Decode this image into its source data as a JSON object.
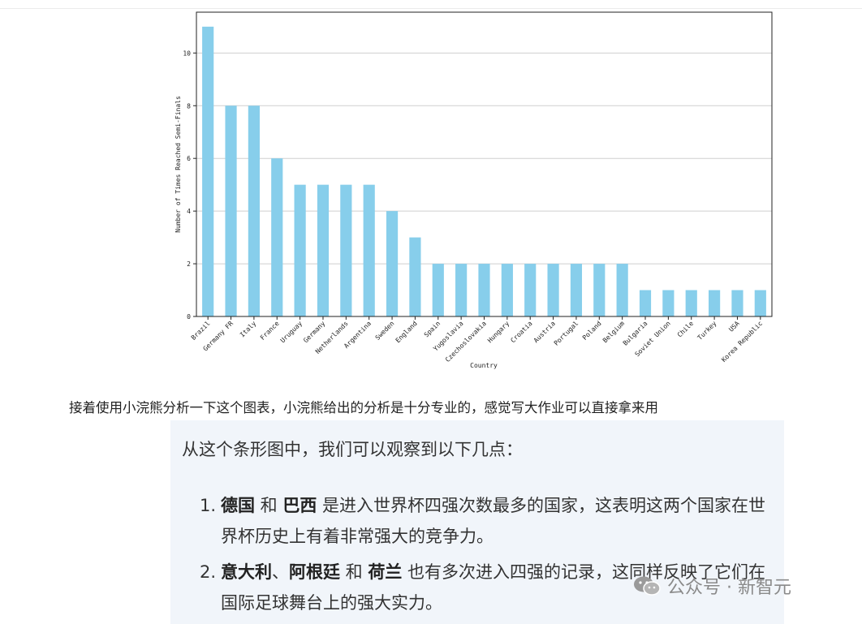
{
  "chart_data": {
    "type": "bar",
    "categories": [
      "Brazil",
      "Germany FR",
      "Italy",
      "France",
      "Uruguay",
      "Germany",
      "Netherlands",
      "Argentina",
      "Sweden",
      "England",
      "Spain",
      "Yugoslavia",
      "Czechoslovakia",
      "Hungary",
      "Croatia",
      "Austria",
      "Portugal",
      "Poland",
      "Belgium",
      "Bulgaria",
      "Soviet Union",
      "Chile",
      "Turkey",
      "USA",
      "Korea Republic"
    ],
    "values": [
      11,
      8,
      8,
      6,
      5,
      5,
      5,
      5,
      4,
      3,
      2,
      2,
      2,
      2,
      2,
      2,
      2,
      2,
      2,
      1,
      1,
      1,
      1,
      1,
      1
    ],
    "xlabel": "Country",
    "ylabel": "Number of Times Reached Semi-Finals",
    "ylim": [
      0,
      11.55
    ],
    "yticks": [
      0,
      2,
      4,
      6,
      8,
      10
    ],
    "grid": "horizontal",
    "bar_color": "#87ceeb"
  },
  "article": {
    "intro": "接着使用小浣熊分析一下这个图表，小浣熊给出的分析是十分专业的，感觉写大作业可以直接拿来用",
    "lead": "从这个条形图中，我们可以观察到以下几点：",
    "items": [
      {
        "num": "1.",
        "b1": "德国",
        "s1": " 和 ",
        "b2": "巴西",
        "s2": "",
        "b3": "",
        "rest": " 是进入世界杯四强次数最多的国家，这表明这两个国家在世界杯历史上有着非常强大的竞争力。"
      },
      {
        "num": "2.",
        "b1": "意大利",
        "s1": "、",
        "b2": "阿根廷",
        "s2": " 和 ",
        "b3": "荷兰",
        "rest": " 也有多次进入四强的记录，这同样反映了它们在国际足球舞台上的强大实力。"
      }
    ]
  },
  "watermark": {
    "text": "公众号 · 新智元",
    "icon": "wechat-icon"
  }
}
